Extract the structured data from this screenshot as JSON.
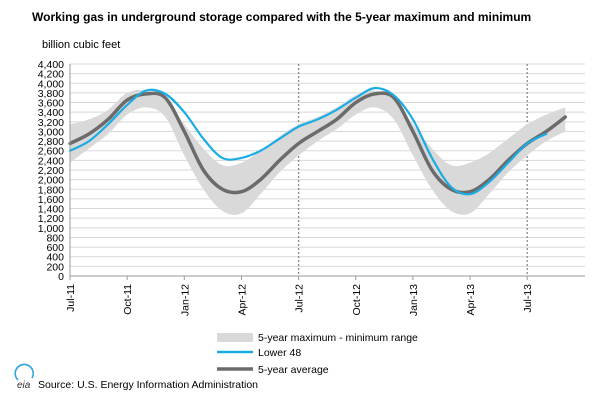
{
  "chart_data": {
    "type": "line",
    "title": "Working gas in underground storage compared with the 5-year maximum and minimum",
    "ylabel": "billion cubic feet",
    "xlabel": "",
    "ylim": [
      0,
      4400
    ],
    "yticks": [
      0,
      200,
      400,
      600,
      800,
      1000,
      1200,
      1400,
      1600,
      1800,
      2000,
      2200,
      2400,
      2600,
      2800,
      3000,
      3200,
      3400,
      3600,
      3800,
      4000,
      4200,
      4400
    ],
    "ytick_labels": [
      "0",
      "200",
      "400",
      "600",
      "800",
      "1,000",
      "1,200",
      "1,400",
      "1,600",
      "1,800",
      "2,000",
      "2,200",
      "2,400",
      "2,600",
      "2,800",
      "3,000",
      "3,200",
      "3,400",
      "3,600",
      "3,800",
      "4,000",
      "4,200",
      "4,400"
    ],
    "xtick_labels": [
      "Jul-11",
      "Oct-11",
      "Jan-12",
      "Apr-12",
      "Jul-12",
      "Oct-12",
      "Jan-13",
      "Apr-13",
      "Jul-13"
    ],
    "grid": true,
    "legend_position": "bottom",
    "vertical_markers": [
      "Jul-12",
      "Jul-13"
    ],
    "x": [
      "Jul-11",
      "Aug-11",
      "Sep-11",
      "Oct-11",
      "Nov-11",
      "Dec-11",
      "Jan-12",
      "Feb-12",
      "Mar-12",
      "Apr-12",
      "May-12",
      "Jun-12",
      "Jul-12",
      "Aug-12",
      "Sep-12",
      "Oct-12",
      "Nov-12",
      "Dec-12",
      "Jan-13",
      "Feb-13",
      "Mar-13",
      "Apr-13",
      "May-13",
      "Jun-13",
      "Jul-13",
      "Aug-13",
      "Sep-13"
    ],
    "band": {
      "name": "5-year maximum - minimum range",
      "color": "#d9d9d9",
      "upper": [
        3150,
        3250,
        3450,
        3800,
        3850,
        3650,
        3150,
        2650,
        2300,
        2350,
        2600,
        2900,
        3150,
        3300,
        3500,
        3750,
        3850,
        3650,
        3150,
        2650,
        2300,
        2350,
        2550,
        2850,
        3150,
        3350,
        3500
      ],
      "lower": [
        2350,
        2650,
        2950,
        3350,
        3500,
        3300,
        2500,
        1800,
        1350,
        1300,
        1700,
        2150,
        2500,
        2800,
        3050,
        3350,
        3500,
        3250,
        2500,
        1800,
        1350,
        1300,
        1700,
        2150,
        2500,
        2800,
        3000
      ]
    },
    "series": [
      {
        "name": "Lower 48",
        "color": "#1aace4",
        "values": [
          2600,
          2800,
          3150,
          3550,
          3850,
          3780,
          3400,
          2850,
          2450,
          2450,
          2600,
          2850,
          3100,
          3250,
          3450,
          3700,
          3900,
          3750,
          3250,
          2450,
          1850,
          1700,
          1950,
          2350,
          2750,
          2950,
          null
        ]
      },
      {
        "name": "5-year average",
        "color": "#6b6b6b",
        "values": [
          2750,
          2950,
          3250,
          3650,
          3780,
          3700,
          3000,
          2200,
          1800,
          1750,
          2000,
          2400,
          2750,
          3000,
          3250,
          3600,
          3780,
          3700,
          3000,
          2200,
          1800,
          1750,
          2000,
          2400,
          2750,
          3000,
          3300
        ]
      }
    ]
  },
  "title": "Working gas in underground storage compared with the 5-year maximum and minimum",
  "ylabel": "billion cubic feet",
  "legend": {
    "band_label": "5-year maximum - minimum range",
    "series1_label": "Lower 48",
    "series2_label": "5-year average"
  },
  "footer": {
    "logo_text": "eia",
    "source": "Source:  U.S. Energy Information Administration"
  }
}
